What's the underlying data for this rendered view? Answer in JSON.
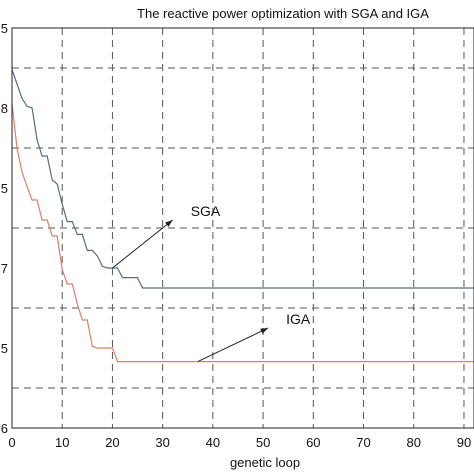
{
  "chart_data": {
    "type": "line",
    "title": "The reactive power optimization with SGA and IGA",
    "xlabel": "genetic loop",
    "ylabel": "",
    "xlim": [
      0,
      92
    ],
    "ylim": [
      0.5,
      5.5
    ],
    "x_ticks": [
      0,
      10,
      20,
      30,
      40,
      50,
      60,
      70,
      80,
      90
    ],
    "x_tick_labels": [
      "0",
      "10",
      "20",
      "30",
      "40",
      "50",
      "60",
      "70",
      "80",
      "90"
    ],
    "y_ticks": [
      1,
      2,
      3,
      4,
      5
    ],
    "y_tick_labels": [
      "6",
      "5",
      "7",
      "5",
      "8",
      "5"
    ],
    "y_tick_values": [
      0.5,
      1.5,
      2.5,
      3.5,
      4.5,
      5.5
    ],
    "grid": true,
    "series": [
      {
        "name": "SGA",
        "color": "#5a6e7a",
        "points": [
          [
            0,
            4.98
          ],
          [
            1,
            4.8
          ],
          [
            2,
            4.62
          ],
          [
            3,
            4.52
          ],
          [
            4,
            4.5
          ],
          [
            5,
            4.1
          ],
          [
            6,
            3.9
          ],
          [
            7,
            3.9
          ],
          [
            8,
            3.6
          ],
          [
            9,
            3.55
          ],
          [
            10,
            3.3
          ],
          [
            11,
            3.08
          ],
          [
            12,
            3.08
          ],
          [
            13,
            2.92
          ],
          [
            14,
            2.92
          ],
          [
            15,
            2.72
          ],
          [
            16,
            2.72
          ],
          [
            17,
            2.65
          ],
          [
            18,
            2.52
          ],
          [
            19,
            2.5
          ],
          [
            20,
            2.5
          ],
          [
            21,
            2.5
          ],
          [
            22,
            2.38
          ],
          [
            23,
            2.38
          ],
          [
            24,
            2.38
          ],
          [
            25,
            2.38
          ],
          [
            26,
            2.25
          ],
          [
            27,
            2.25
          ],
          [
            92,
            2.25
          ]
        ]
      },
      {
        "name": "IGA",
        "color": "#d8826a",
        "points": [
          [
            0,
            4.55
          ],
          [
            1,
            4.0
          ],
          [
            2,
            3.7
          ],
          [
            3,
            3.52
          ],
          [
            4,
            3.35
          ],
          [
            5,
            3.35
          ],
          [
            6,
            3.1
          ],
          [
            7,
            3.1
          ],
          [
            8,
            2.9
          ],
          [
            9,
            2.9
          ],
          [
            10,
            2.48
          ],
          [
            11,
            2.3
          ],
          [
            12,
            2.3
          ],
          [
            13,
            2.05
          ],
          [
            14,
            1.85
          ],
          [
            15,
            1.85
          ],
          [
            16,
            1.52
          ],
          [
            17,
            1.5
          ],
          [
            18,
            1.5
          ],
          [
            19,
            1.5
          ],
          [
            20,
            1.5
          ],
          [
            21,
            1.33
          ],
          [
            22,
            1.33
          ],
          [
            92,
            1.33
          ]
        ]
      }
    ],
    "annotations": [
      {
        "text": "SGA",
        "from": [
          32,
          3.1
        ],
        "to": [
          20,
          2.5
        ]
      },
      {
        "text": "IGA",
        "from": [
          51,
          1.75
        ],
        "to": [
          37,
          1.33
        ]
      }
    ]
  }
}
